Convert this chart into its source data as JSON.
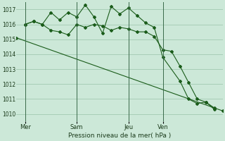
{
  "background_color": "#cce8d8",
  "grid_color": "#99c4aa",
  "line_color": "#1a5c1a",
  "xlabel": "Pression niveau de la mer( hPa )",
  "ylim": [
    1009.5,
    1017.5
  ],
  "yticks": [
    1010,
    1011,
    1012,
    1013,
    1014,
    1015,
    1016,
    1017
  ],
  "xtick_labels": [
    "Mer",
    "Sam",
    "Jeu",
    "Ven"
  ],
  "xtick_positions": [
    0.5,
    3.5,
    6.5,
    8.5
  ],
  "xlim": [
    0,
    12
  ],
  "series_trend_x": [
    0,
    12
  ],
  "series_trend_y": [
    1015.1,
    1010.2
  ],
  "series_wavy_x": [
    0.5,
    1.0,
    1.5,
    2.0,
    2.5,
    3.0,
    3.5,
    4.0,
    4.5,
    5.0,
    5.5,
    6.0,
    6.5,
    7.0,
    7.5,
    8.0,
    8.5,
    9.0,
    9.5,
    10.0,
    10.5,
    11.0,
    11.5
  ],
  "series_wavy_y": [
    1016.0,
    1016.2,
    1016.0,
    1015.6,
    1015.5,
    1015.3,
    1016.0,
    1015.8,
    1016.0,
    1015.9,
    1015.6,
    1015.8,
    1015.7,
    1015.5,
    1015.5,
    1015.2,
    1014.3,
    1014.2,
    1013.2,
    1012.1,
    1011.0,
    1010.8,
    1010.3
  ],
  "series_peak_x": [
    0.5,
    1.0,
    1.5,
    2.0,
    2.5,
    3.0,
    3.5,
    4.0,
    4.5,
    5.0,
    5.5,
    6.0,
    6.5,
    7.0,
    7.5,
    8.0,
    8.5,
    9.5,
    10.0,
    10.5,
    11.0,
    11.5
  ],
  "series_peak_y": [
    1016.0,
    1016.2,
    1016.0,
    1016.8,
    1016.3,
    1016.8,
    1016.5,
    1017.3,
    1016.5,
    1015.4,
    1017.2,
    1016.7,
    1017.1,
    1016.6,
    1016.1,
    1015.8,
    1013.8,
    1012.2,
    1011.0,
    1010.7,
    1010.8,
    1010.4
  ],
  "vline_positions": [
    0.5,
    3.5,
    6.5,
    8.5
  ]
}
